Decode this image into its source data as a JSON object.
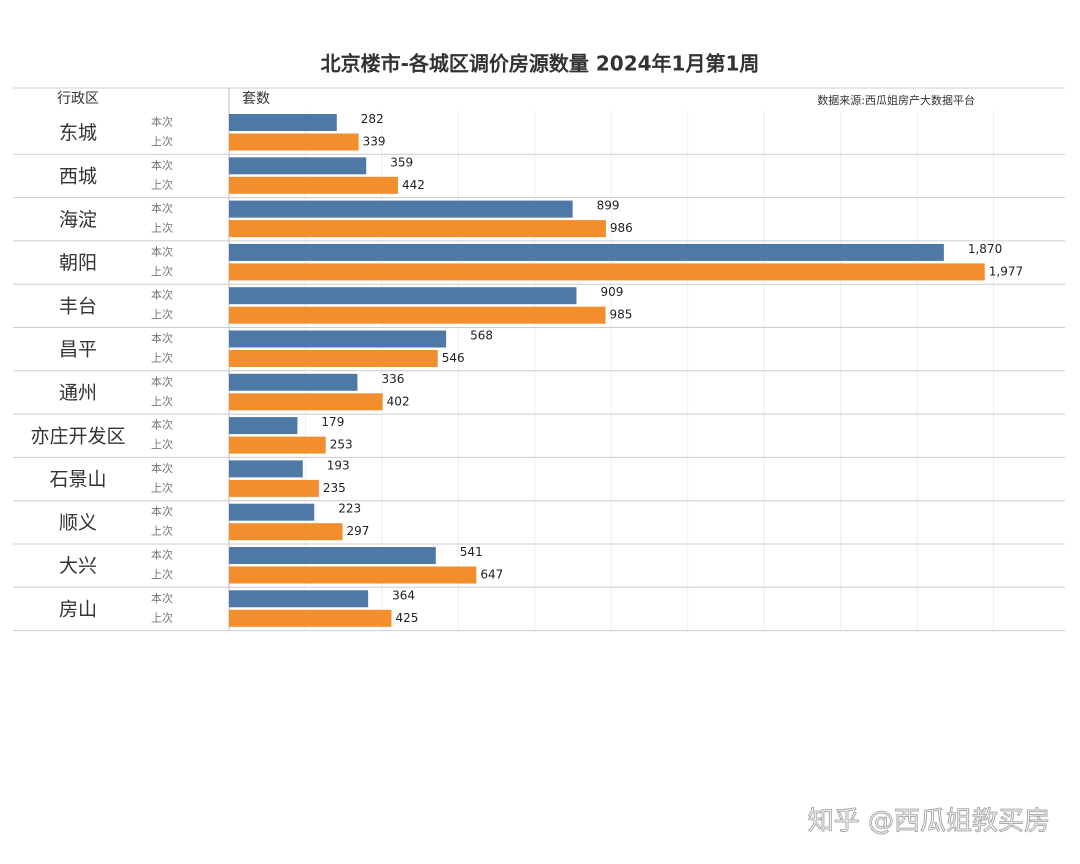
{
  "chart_data": {
    "type": "bar",
    "orientation": "horizontal",
    "title": "北京楼市-各城区调价房源数量 2024年1月第1周",
    "y_label": "行政区",
    "x_label": "套数",
    "source": "数据来源:西瓜姐房产大数据平台",
    "watermark": "知乎 @西瓜姐教买房",
    "categories": [
      "东城",
      "西城",
      "海淀",
      "朝阳",
      "丰台",
      "昌平",
      "通州",
      "亦庄开发区",
      "石景山",
      "顺义",
      "大兴",
      "房山"
    ],
    "series": [
      {
        "name": "本次",
        "color": "#4e79a7",
        "values": [
          282,
          359,
          899,
          1870,
          909,
          568,
          336,
          179,
          193,
          223,
          541,
          364
        ],
        "value_labels": [
          "282",
          "359",
          "899",
          "1,870",
          "909",
          "568",
          "336",
          "179",
          "193",
          "223",
          "541",
          "364"
        ]
      },
      {
        "name": "上次",
        "color": "#f28e2b",
        "values": [
          339,
          442,
          986,
          1977,
          985,
          546,
          402,
          253,
          235,
          297,
          647,
          425
        ],
        "value_labels": [
          "339",
          "442",
          "986",
          "1,977",
          "985",
          "546",
          "402",
          "253",
          "235",
          "297",
          "647",
          "425"
        ]
      }
    ],
    "xlim": [
      0,
      2200
    ],
    "xticks": [
      0,
      200,
      400,
      600,
      800,
      1000,
      1200,
      1400,
      1600,
      1800,
      2000,
      2200
    ],
    "grid": true
  }
}
